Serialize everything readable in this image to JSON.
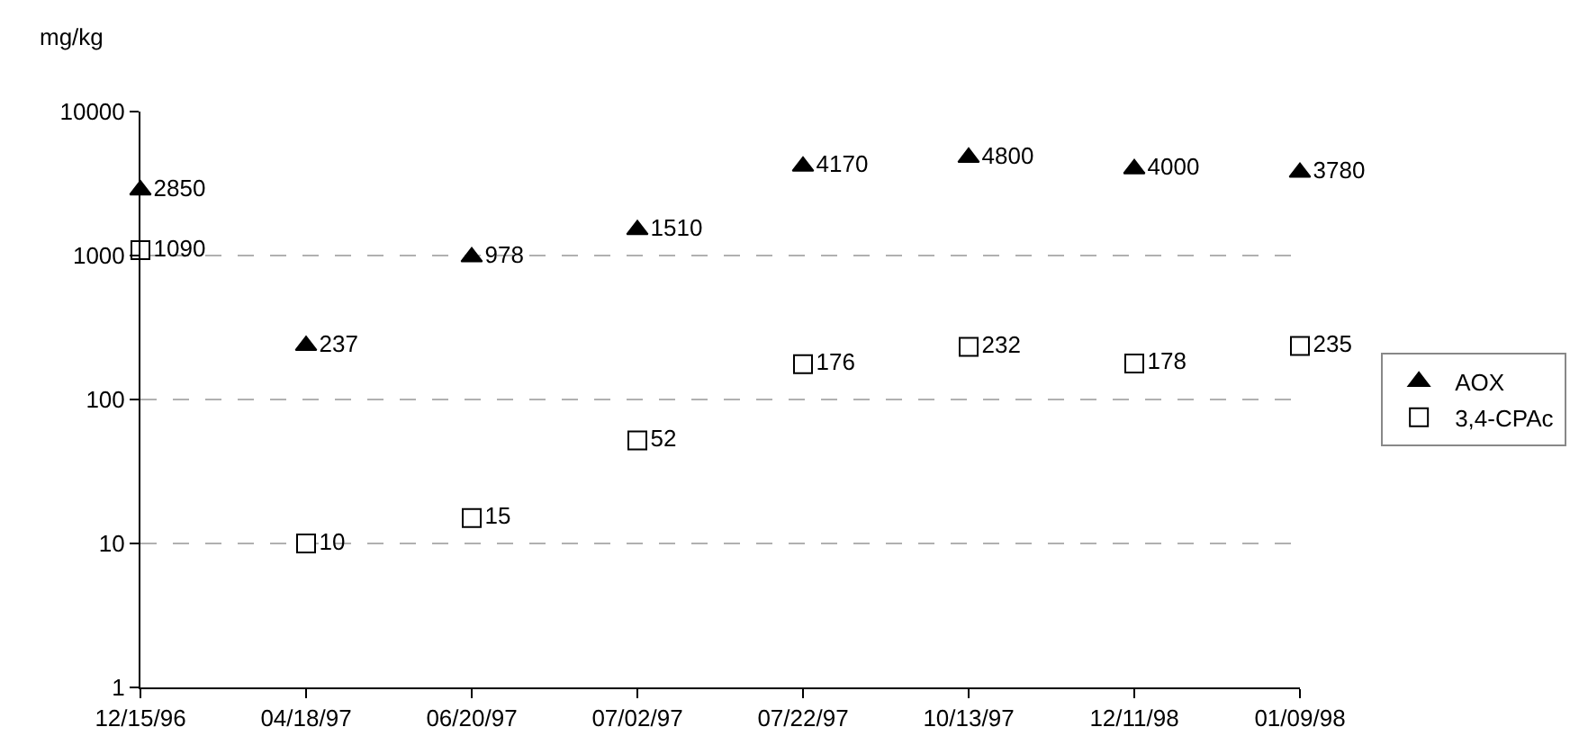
{
  "chart_data": {
    "type": "scatter",
    "ylabel": "mg/kg",
    "categories": [
      "12/15/96",
      "04/18/97",
      "06/20/97",
      "07/02/97",
      "07/22/97",
      "10/13/97",
      "12/11/98",
      "01/09/98"
    ],
    "series": [
      {
        "name": "AOX",
        "color": "#000000",
        "marker": "triangle",
        "values": [
          2850,
          237,
          978,
          1510,
          4170,
          4800,
          4000,
          3780
        ]
      },
      {
        "name": "3,4-CPAc",
        "color": "#000000",
        "marker": "square",
        "values": [
          1090,
          10,
          15,
          52,
          176,
          232,
          178,
          235
        ]
      }
    ],
    "log": "y",
    "ylim": [
      1,
      10000
    ],
    "yticks": [
      1,
      10,
      100,
      1000,
      10000
    ],
    "grid": "y",
    "legend": "right",
    "data_labels": true
  }
}
